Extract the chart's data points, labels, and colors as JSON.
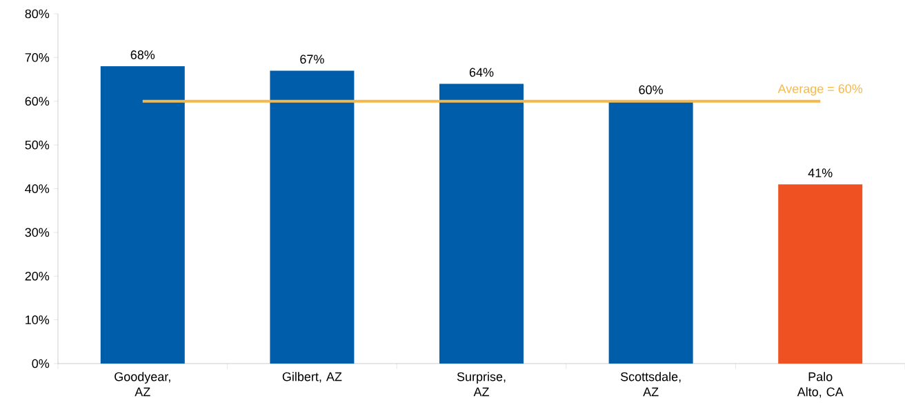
{
  "chart_data": {
    "type": "bar",
    "categories": [
      "Goodyear, AZ",
      "Gilbert, AZ",
      "Surprise, AZ",
      "Scottsdale, AZ",
      "Palo Alto, CA"
    ],
    "values": [
      68,
      67,
      64,
      60,
      41
    ],
    "colors": [
      "#005daa",
      "#005daa",
      "#005daa",
      "#005daa",
      "#f05123"
    ],
    "value_labels": [
      "68%",
      "67%",
      "64%",
      "60%",
      "41%"
    ],
    "ylim": [
      0,
      80
    ],
    "yticks": [
      {
        "value": 0,
        "label": "0%"
      },
      {
        "value": 10,
        "label": "10%"
      },
      {
        "value": 20,
        "label": "20%"
      },
      {
        "value": 30,
        "label": "30%"
      },
      {
        "value": 40,
        "label": "40%"
      },
      {
        "value": 50,
        "label": "50%"
      },
      {
        "value": 60,
        "label": "60%"
      },
      {
        "value": 70,
        "label": "70%"
      },
      {
        "value": 80,
        "label": "80%"
      }
    ],
    "ref_lines": [
      {
        "axis": "y",
        "value": 60,
        "label": "Average = 60%",
        "color": "#f6b84b"
      }
    ],
    "grid": false
  }
}
